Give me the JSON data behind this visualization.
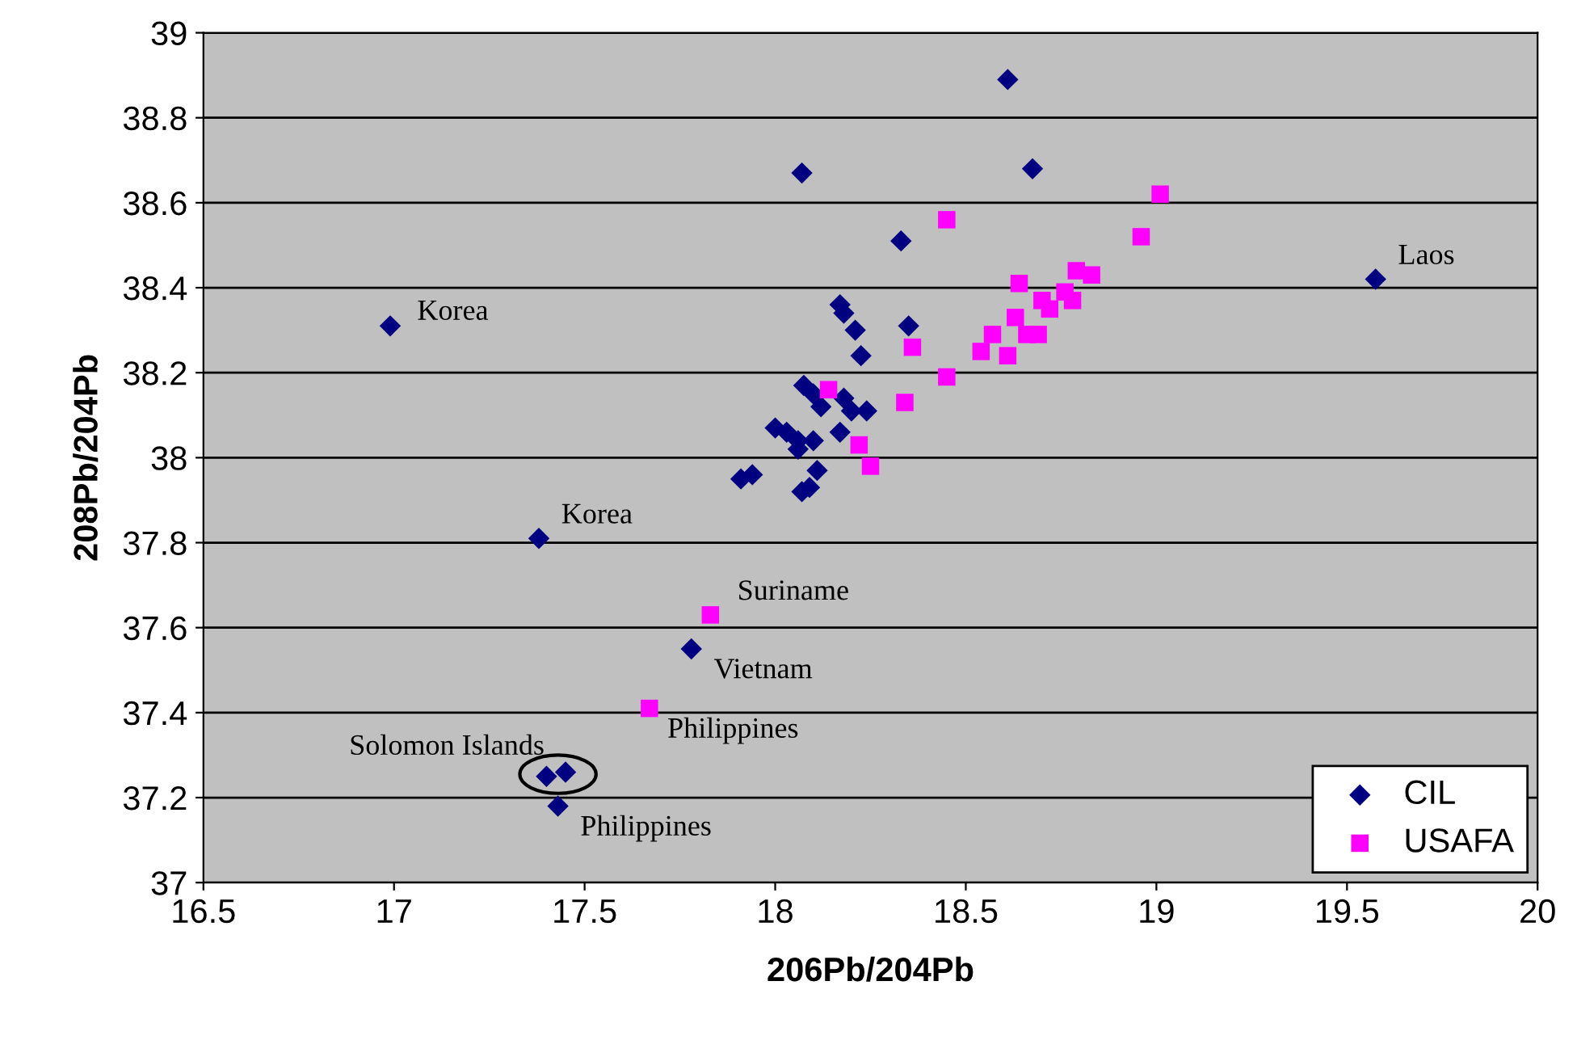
{
  "chart_data": {
    "type": "scatter",
    "xlabel": "206Pb/204Pb",
    "ylabel": "208Pb/204Pb",
    "xlim": [
      16.5,
      20
    ],
    "xticks": [
      16.5,
      17,
      17.5,
      18,
      18.5,
      19,
      19.5,
      20
    ],
    "ylim": [
      37,
      39
    ],
    "yticks": [
      37,
      {
        "value": 37.2,
        "label": "37.2"
      },
      {
        "value": 37.4,
        "label": "37.4"
      },
      {
        "value": 37.6,
        "label": "37.6"
      },
      {
        "value": 37.8,
        "label": "37.8"
      },
      38,
      {
        "value": 38.2,
        "label": "38.2"
      },
      {
        "value": 38.4,
        "label": "38.4"
      },
      {
        "value": 38.6,
        "label": "38.6"
      },
      {
        "value": 38.8,
        "label": "38.8"
      },
      39
    ],
    "grid": "y",
    "legend": "bottom right",
    "series": [
      {
        "name": "CIL",
        "color": "#000080",
        "marker": "diamond",
        "x": [
          16.99,
          17.38,
          18.61,
          18.675,
          18.07,
          18.33,
          18.35,
          18.17,
          18.18,
          18.21,
          18.225,
          18.075,
          18.1,
          18.12,
          18.18,
          18.2,
          18.24,
          18.0,
          18.03,
          18.06,
          18.1,
          18.06,
          18.17,
          18.11,
          17.91,
          17.94,
          18.07,
          18.09,
          17.78,
          17.4,
          17.45,
          17.43,
          19.575
        ],
        "values": [
          38.31,
          37.81,
          38.89,
          38.68,
          38.67,
          38.51,
          38.31,
          38.36,
          38.34,
          38.3,
          38.24,
          38.17,
          38.15,
          38.12,
          38.14,
          38.11,
          38.11,
          38.07,
          38.06,
          38.04,
          38.04,
          38.02,
          38.06,
          37.97,
          37.95,
          37.96,
          37.92,
          37.93,
          37.55,
          37.25,
          37.26,
          37.18,
          38.42
        ]
      },
      {
        "name": "USAFA",
        "color": "#ff00ff",
        "marker": "square",
        "x": [
          18.45,
          19.01,
          18.96,
          18.64,
          18.79,
          18.83,
          18.76,
          18.7,
          18.78,
          18.72,
          18.64,
          18.63,
          18.66,
          18.69,
          18.57,
          18.54,
          18.61,
          18.36,
          18.45,
          18.34,
          18.14,
          18.22,
          18.25,
          17.83,
          17.67
        ],
        "values": [
          38.56,
          38.62,
          38.52,
          38.41,
          38.44,
          38.43,
          38.39,
          38.37,
          38.37,
          38.35,
          null,
          38.33,
          38.29,
          38.29,
          38.29,
          38.25,
          38.24,
          38.26,
          38.19,
          38.13,
          38.16,
          38.03,
          37.98,
          37.63,
          37.41
        ]
      }
    ],
    "annotations": [
      {
        "text": "Korea",
        "x": 16.99,
        "y": 38.31
      },
      {
        "text": "Korea",
        "x": 17.38,
        "y": 37.81
      },
      {
        "text": "Laos",
        "x": 19.575,
        "y": 38.42
      },
      {
        "text": "Suriname",
        "x": 17.83,
        "y": 37.63
      },
      {
        "text": "Vietnam",
        "x": 17.78,
        "y": 37.55
      },
      {
        "text": "Philippines",
        "x": 17.67,
        "y": 37.41
      },
      {
        "text": "Solomon Islands",
        "x": 17.43,
        "y": 37.255
      },
      {
        "text": "Philippines",
        "x": 17.43,
        "y": 37.18
      }
    ]
  }
}
